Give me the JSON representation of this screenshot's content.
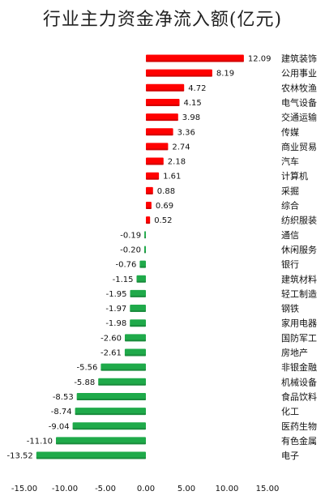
{
  "chart_data": {
    "type": "bar",
    "orientation": "horizontal",
    "title": "行业主力资金净流入额(亿元)",
    "categories": [
      "建筑装饰",
      "公用事业",
      "农林牧渔",
      "电气设备",
      "交通运输",
      "传媒",
      "商业贸易",
      "汽车",
      "计算机",
      "采掘",
      "综合",
      "纺织服装",
      "通信",
      "休闲服务",
      "银行",
      "建筑材料",
      "轻工制造",
      "钢铁",
      "家用电器",
      "国防军工",
      "房地产",
      "非银金融",
      "机械设备",
      "食品饮料",
      "化工",
      "医药生物",
      "有色金属",
      "电子"
    ],
    "values": [
      12.09,
      8.19,
      4.72,
      4.15,
      3.98,
      3.36,
      2.74,
      2.18,
      1.61,
      0.88,
      0.69,
      0.52,
      -0.19,
      -0.2,
      -0.76,
      -1.15,
      -1.95,
      -1.97,
      -1.98,
      -2.6,
      -2.61,
      -5.56,
      -5.88,
      -8.53,
      -8.74,
      -9.04,
      -11.1,
      -13.52
    ],
    "value_labels": [
      "12.09",
      "8.19",
      "4.72",
      "4.15",
      "3.98",
      "3.36",
      "2.74",
      "2.18",
      "1.61",
      "0.88",
      "0.69",
      "0.52",
      "-0.19",
      "-0.20",
      "-0.76",
      "-1.15",
      "-1.95",
      "-1.97",
      "-1.98",
      "-2.60",
      "-2.61",
      "-5.56",
      "-5.88",
      "-8.53",
      "-8.74",
      "-9.04",
      "-11.10",
      "-13.52"
    ],
    "xlim": [
      -15,
      15
    ],
    "x_ticks": [
      -15,
      -10,
      -5,
      0,
      5,
      10,
      15
    ],
    "x_tick_labels": [
      "-15.00",
      "-10.00",
      "-5.00",
      "0.00",
      "5.00",
      "10.00",
      "15.00"
    ],
    "grid": false,
    "legend": "none",
    "colors": {
      "positive": "#ff0000",
      "negative": "#1faa4a"
    }
  }
}
